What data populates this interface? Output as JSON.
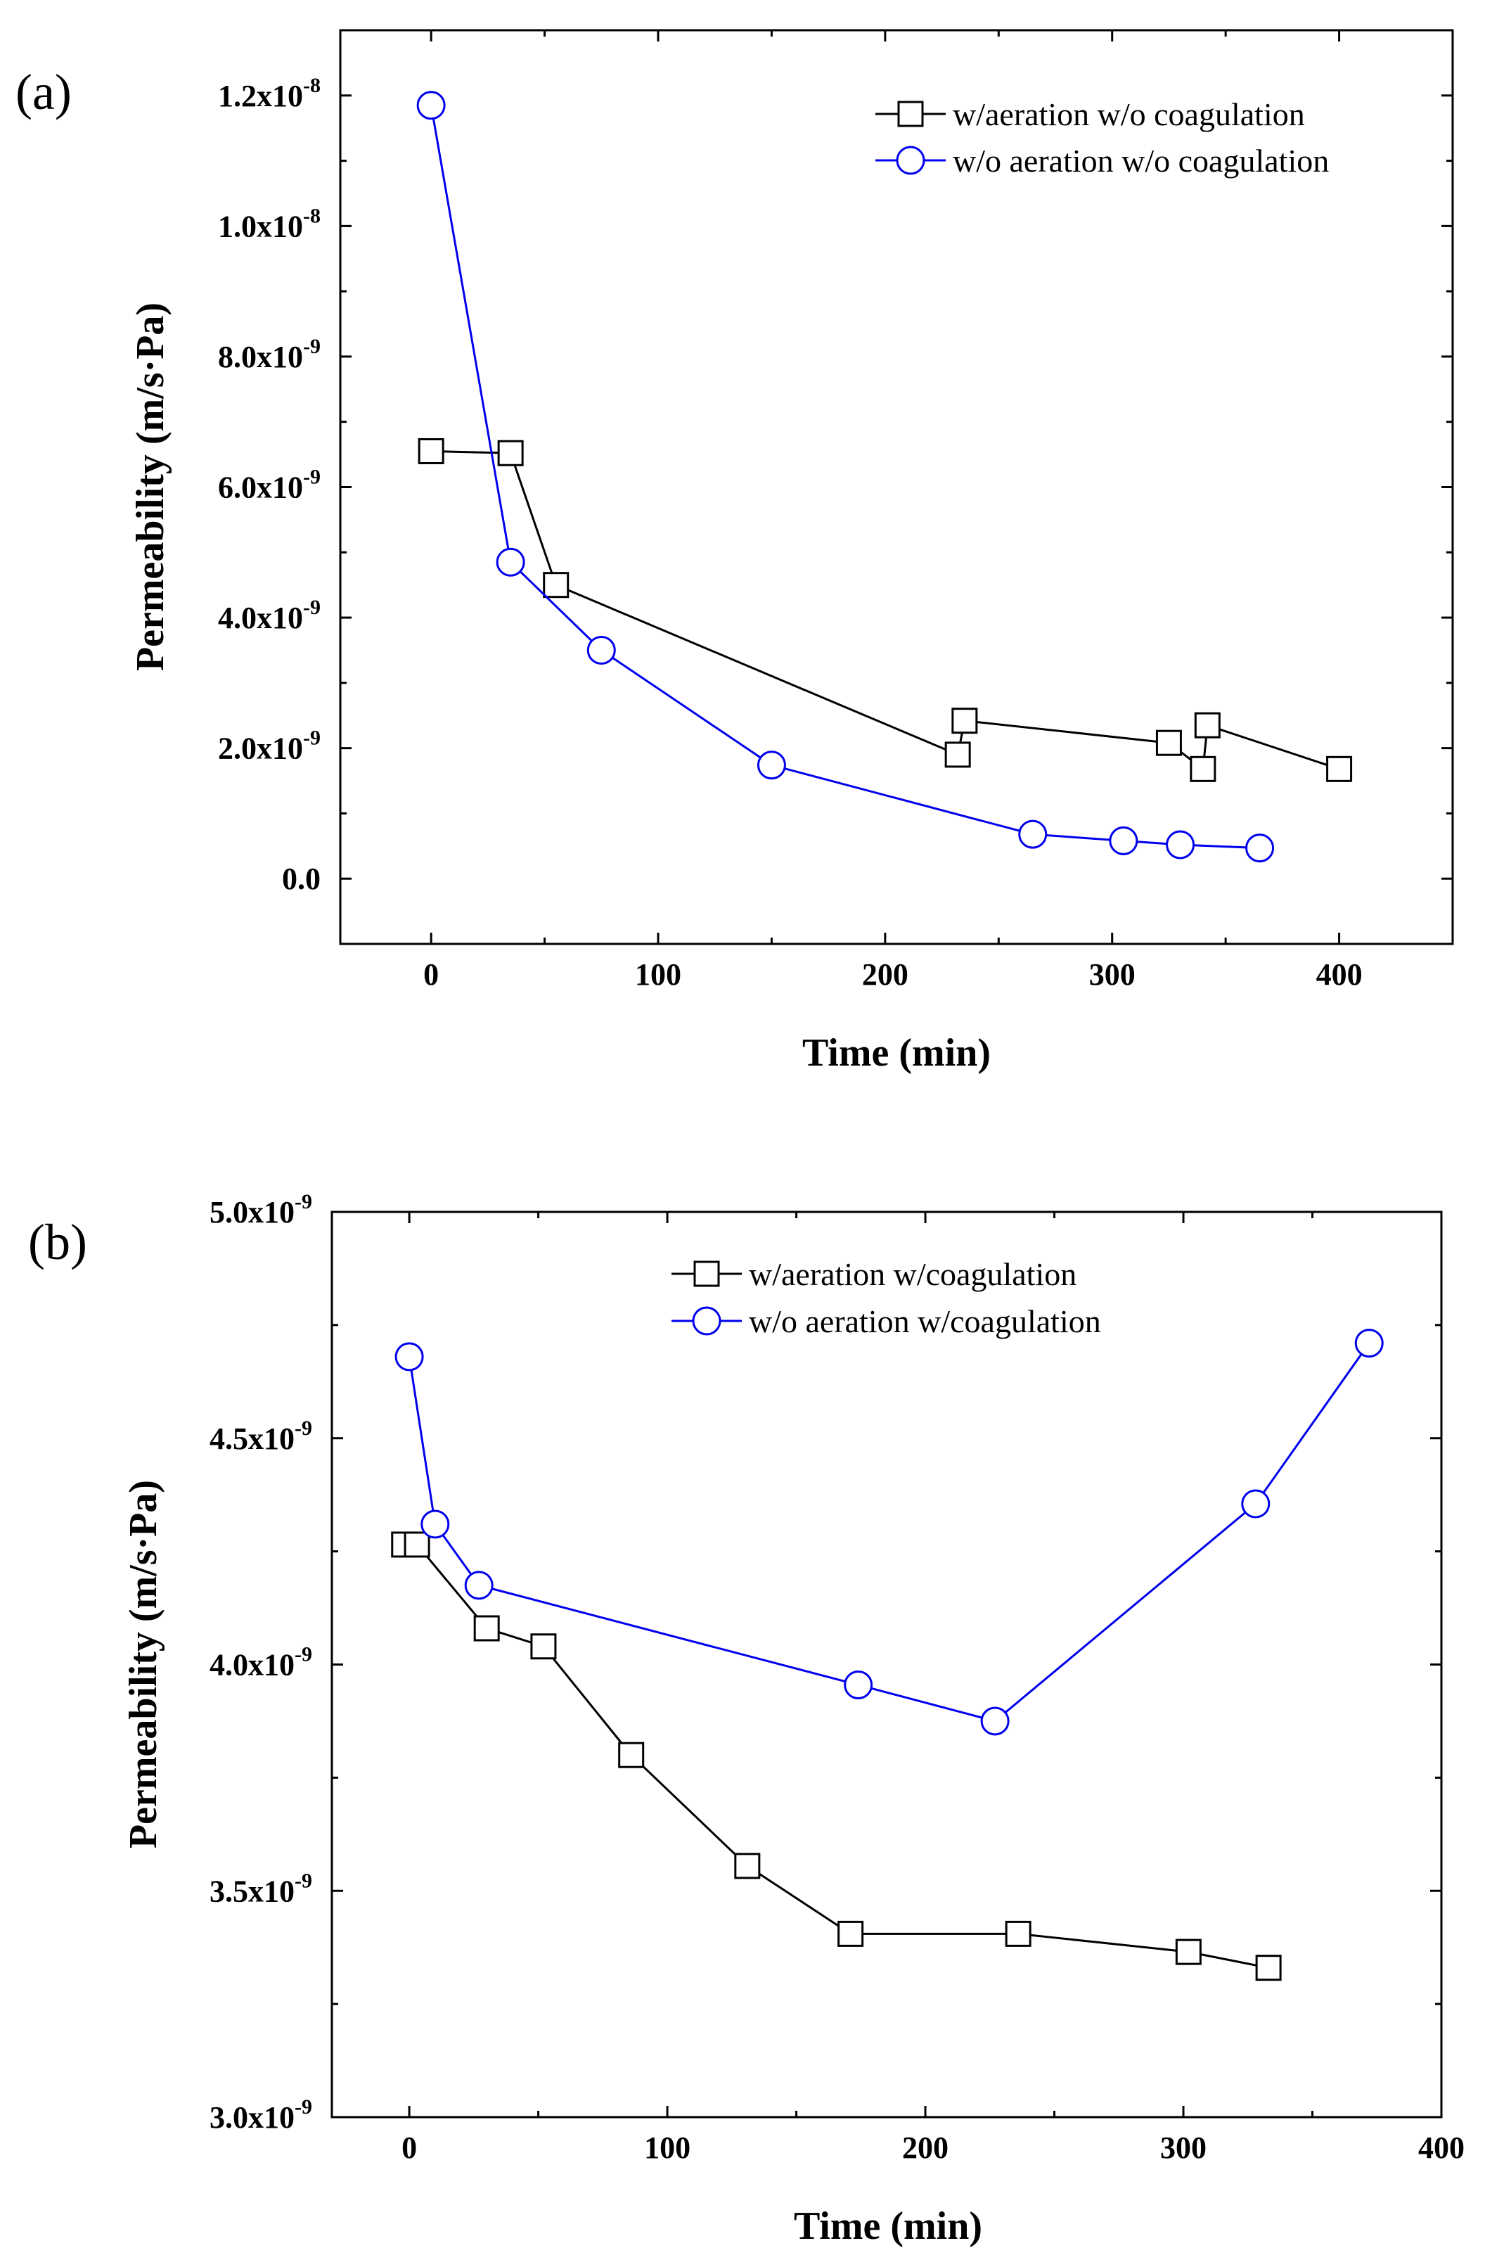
{
  "chart_data": [
    {
      "type": "line",
      "panel_label": "(a)",
      "xlabel": "Time (min)",
      "ylabel": "Permeability (m/s·Pa)",
      "xlim": [
        -40,
        450
      ],
      "ylim": [
        -1e-09,
        1.3e-08
      ],
      "x_ticks": [
        0,
        100,
        200,
        300,
        400
      ],
      "x_tick_labels": [
        "0",
        "100",
        "200",
        "300",
        "400"
      ],
      "y_ticks": [
        0,
        2e-09,
        4e-09,
        6e-09,
        8e-09,
        1e-08,
        1.2e-08
      ],
      "y_tick_labels": [
        {
          "mantissa": "0.0",
          "exp": ""
        },
        {
          "mantissa": "2.0x10",
          "exp": "-9"
        },
        {
          "mantissa": "4.0x10",
          "exp": "-9"
        },
        {
          "mantissa": "6.0x10",
          "exp": "-9"
        },
        {
          "mantissa": "8.0x10",
          "exp": "-9"
        },
        {
          "mantissa": "1.0x10",
          "exp": "-8"
        },
        {
          "mantissa": "1.2x10",
          "exp": "-8"
        }
      ],
      "legend_position": "top-right",
      "series": [
        {
          "name": "w/aeration w/o coagulation",
          "marker": "square",
          "color": "#000000",
          "x": [
            0,
            35,
            55,
            232,
            235,
            325,
            340,
            342,
            400
          ],
          "y": [
            6.55e-09,
            6.52e-09,
            4.5e-09,
            1.9e-09,
            2.42e-09,
            2.08e-09,
            1.68e-09,
            2.35e-09,
            1.68e-09
          ]
        },
        {
          "name": "w/o aeration w/o coagulation",
          "marker": "circle",
          "color": "#0000ee",
          "x": [
            0,
            35,
            75,
            150,
            265,
            305,
            330,
            365
          ],
          "y": [
            1.185e-08,
            4.85e-09,
            3.5e-09,
            1.74e-09,
            6.8e-10,
            5.8e-10,
            5.2e-10,
            4.7e-10
          ]
        }
      ]
    },
    {
      "type": "line",
      "panel_label": "(b)",
      "xlabel": "Time (min)",
      "ylabel": "Permeability (m/s·Pa)",
      "xlim": [
        -30,
        400
      ],
      "ylim": [
        3e-09,
        5e-09
      ],
      "x_ticks": [
        0,
        100,
        200,
        300,
        400
      ],
      "x_tick_labels": [
        "0",
        "100",
        "200",
        "300",
        "400"
      ],
      "y_ticks": [
        3e-09,
        3.5e-09,
        4e-09,
        4.5e-09,
        5e-09
      ],
      "y_tick_labels": [
        {
          "mantissa": "3.0x10",
          "exp": "-9"
        },
        {
          "mantissa": "3.5x10",
          "exp": "-9"
        },
        {
          "mantissa": "4.0x10",
          "exp": "-9"
        },
        {
          "mantissa": "4.5x10",
          "exp": "-9"
        },
        {
          "mantissa": "5.0x10",
          "exp": "-9"
        }
      ],
      "legend_position": "top-center",
      "series": [
        {
          "name": "w/aeration w/coagulation",
          "marker": "square",
          "color": "#000000",
          "x": [
            -2,
            3,
            30,
            52,
            86,
            131,
            171,
            236,
            302,
            333
          ],
          "y": [
            4.265e-09,
            4.265e-09,
            4.08e-09,
            4.04e-09,
            3.8e-09,
            3.555e-09,
            3.405e-09,
            3.405e-09,
            3.365e-09,
            3.33e-09
          ]
        },
        {
          "name": "w/o aeration w/coagulation",
          "marker": "circle",
          "color": "#0000ee",
          "x": [
            0,
            10,
            27,
            174,
            227,
            328,
            372
          ],
          "y": [
            4.68e-09,
            4.31e-09,
            4.175e-09,
            3.955e-09,
            3.875e-09,
            4.355e-09,
            4.71e-09
          ]
        }
      ]
    }
  ]
}
